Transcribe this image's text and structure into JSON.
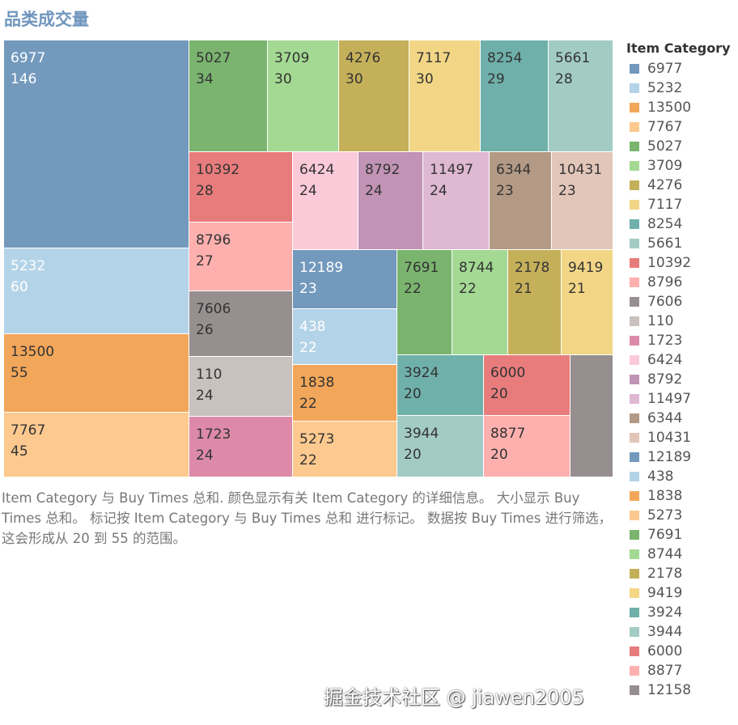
{
  "title": "品类成交量",
  "chart_data": {
    "type": "treemap",
    "title": "品类成交量",
    "legend_title": "Item Category",
    "legend_position": "right",
    "items": [
      {
        "category": "6977",
        "value": 146,
        "color": "#7399bd"
      },
      {
        "category": "5232",
        "value": 60,
        "color": "#b3d3e8"
      },
      {
        "category": "13500",
        "value": 55,
        "color": "#f2a65a"
      },
      {
        "category": "7767",
        "value": 45,
        "color": "#fdc98f"
      },
      {
        "category": "5027",
        "value": 34,
        "color": "#7ab46f"
      },
      {
        "category": "3709",
        "value": 30,
        "color": "#a3d993"
      },
      {
        "category": "4276",
        "value": 30,
        "color": "#c5b05a"
      },
      {
        "category": "7117",
        "value": 30,
        "color": "#f2d686"
      },
      {
        "category": "8254",
        "value": 29,
        "color": "#6fb0aa"
      },
      {
        "category": "5661",
        "value": 28,
        "color": "#a3cbc5"
      },
      {
        "category": "10392",
        "value": 28,
        "color": "#e87c7c"
      },
      {
        "category": "8796",
        "value": 27,
        "color": "#fdb0ae"
      },
      {
        "category": "7606",
        "value": 26,
        "color": "#978f8f"
      },
      {
        "category": "110",
        "value": 24,
        "color": "#c9c1be"
      },
      {
        "category": "1723",
        "value": 24,
        "color": "#dc8aa8"
      },
      {
        "category": "6424",
        "value": 24,
        "color": "#fbcad9"
      },
      {
        "category": "8792",
        "value": 24,
        "color": "#c193b4"
      },
      {
        "category": "11497",
        "value": 24,
        "color": "#dfb8d2"
      },
      {
        "category": "6344",
        "value": 23,
        "color": "#b39a86"
      },
      {
        "category": "10431",
        "value": 23,
        "color": "#e2c6b9"
      },
      {
        "category": "12189",
        "value": 23,
        "color": "#7399bd"
      },
      {
        "category": "438",
        "value": 22,
        "color": "#b3d3e8"
      },
      {
        "category": "1838",
        "value": 22,
        "color": "#f2a65a"
      },
      {
        "category": "5273",
        "value": 22,
        "color": "#fdc98f"
      },
      {
        "category": "7691",
        "value": 22,
        "color": "#7ab46f"
      },
      {
        "category": "8744",
        "value": 22,
        "color": "#a3d993"
      },
      {
        "category": "2178",
        "value": 21,
        "color": "#c5b05a"
      },
      {
        "category": "9419",
        "value": 21,
        "color": "#f2d686"
      },
      {
        "category": "3924",
        "value": 20,
        "color": "#6fb0aa"
      },
      {
        "category": "3944",
        "value": 20,
        "color": "#a3cbc5"
      },
      {
        "category": "6000",
        "value": 20,
        "color": "#e87c7c"
      },
      {
        "category": "8877",
        "value": 20,
        "color": "#fdb0ae"
      },
      {
        "category": "12158",
        "value": 20,
        "color": "#978f8f",
        "label_hidden": true
      }
    ]
  },
  "caption": "Item Category 与 Buy Times 总和. 颜色显示有关 Item Category 的详细信息。 大小显示 Buy Times 总和。 标记按 Item Category 与 Buy Times 总和 进行标记。 数据按 Buy Times 进行筛选，这会形成从 20 到 55 的范围。",
  "watermark": "掘金技术社区 @ jiawen2005"
}
